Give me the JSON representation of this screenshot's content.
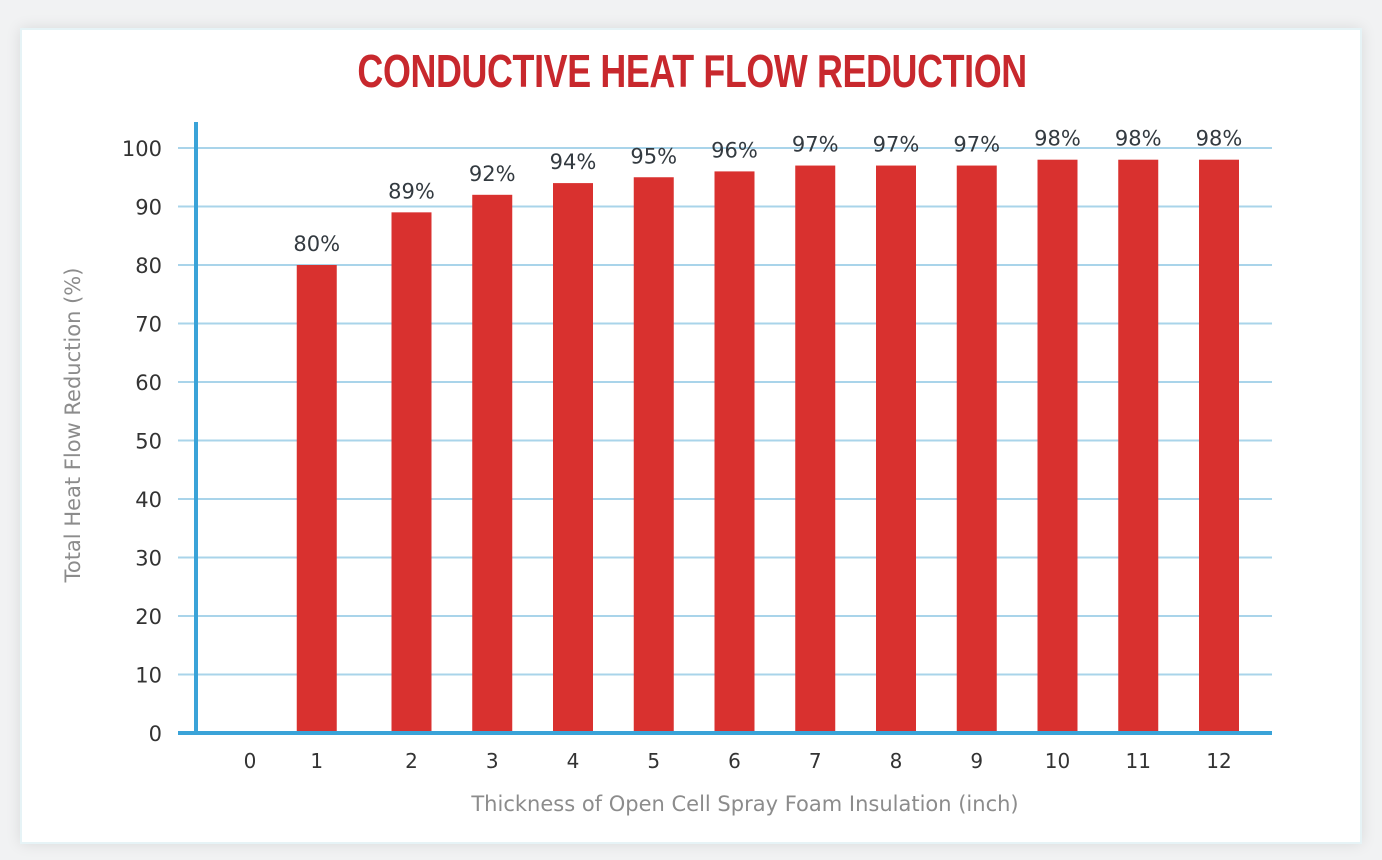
{
  "chart_data": {
    "type": "bar",
    "title": "CONDUCTIVE HEAT FLOW REDUCTION",
    "xlabel": "Thickness of Open Cell Spray Foam Insulation (inch)",
    "ylabel": "Total Heat Flow Reduction (%)",
    "categories": [
      "0",
      "1",
      "2",
      "3",
      "4",
      "5",
      "6",
      "7",
      "8",
      "9",
      "10",
      "11",
      "12"
    ],
    "values": [
      null,
      80,
      89,
      92,
      94,
      95,
      96,
      97,
      97,
      97,
      98,
      98,
      98
    ],
    "data_labels": [
      "",
      "80%",
      "89%",
      "92%",
      "94%",
      "95%",
      "96%",
      "97%",
      "97%",
      "97%",
      "98%",
      "98%",
      "98%"
    ],
    "ylim": [
      0,
      100
    ],
    "yticks": [
      0,
      10,
      20,
      30,
      40,
      50,
      60,
      70,
      80,
      90,
      100
    ],
    "grid": true,
    "legend": "none",
    "colors": {
      "bar": "#d9312f",
      "title": "#c8282d",
      "axis": "#3aa3d8",
      "grid": "#a9d4ea",
      "axis_label": "#8c8c8c"
    }
  }
}
